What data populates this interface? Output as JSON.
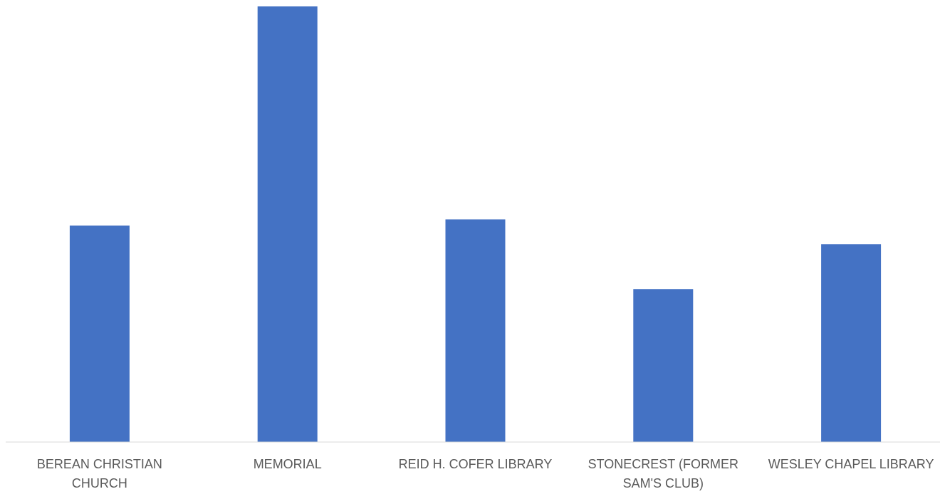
{
  "chart_data": {
    "type": "bar",
    "categories": [
      "BEREAN CHRISTIAN CHURCH",
      "MEMORIAL",
      "REID H. COFER LIBRARY",
      "STONECREST (FORMER SAM'S CLUB)",
      "WESLEY CHAPEL LIBRARY"
    ],
    "category_label_lines": [
      [
        "BEREAN CHRISTIAN",
        "CHURCH"
      ],
      [
        "MEMORIAL"
      ],
      [
        "REID H. COFER LIBRARY"
      ],
      [
        "STONECREST (FORMER",
        "SAM'S CLUB)"
      ],
      [
        "WESLEY CHAPEL LIBRARY"
      ]
    ],
    "values": [
      49.7,
      100,
      51.1,
      35.1,
      45.4
    ],
    "ylim": [
      0,
      100
    ],
    "title": "",
    "xlabel": "",
    "ylabel": "",
    "grid": false,
    "legend": "none",
    "colors": {
      "bar": "#4472c4",
      "axis": "#d9d9d9",
      "label": "#595959"
    }
  }
}
